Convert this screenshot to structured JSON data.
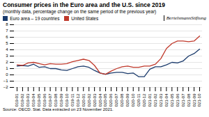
{
  "chart_data": {
    "type": "line",
    "title": "Consumer prices in the Euro area and the U.S. since 2019",
    "subtitle": "(monthly data, percentage change on the same period of the previous year)",
    "caption": "Source: OECD. Stat. Data extracted on 23 November 2021.",
    "annotations": [
      "BertelsmannStiftung"
    ],
    "x": [
      "2019-01",
      "2019-02",
      "2019-03",
      "2019-04",
      "2019-05",
      "2019-06",
      "2019-07",
      "2019-08",
      "2019-09",
      "2019-10",
      "2019-11",
      "2019-12",
      "2020-01",
      "2020-02",
      "2020-03",
      "2020-04",
      "2020-05",
      "2020-06",
      "2020-07",
      "2020-08",
      "2020-09",
      "2020-10",
      "2020-11",
      "2020-12",
      "2021-01",
      "2021-02",
      "2021-03",
      "2021-04",
      "2021-05",
      "2021-06",
      "2021-07",
      "2021-08",
      "2021-09",
      "2021-10"
    ],
    "series": [
      {
        "name": "Euro area – 19 countries",
        "color": "#1a3a6b",
        "values": [
          1.4,
          1.5,
          1.4,
          1.7,
          1.2,
          1.3,
          1.0,
          1.0,
          0.8,
          0.7,
          1.0,
          1.3,
          1.4,
          1.2,
          0.7,
          0.3,
          0.1,
          0.3,
          0.4,
          0.4,
          0.2,
          0.3,
          -0.3,
          -0.3,
          0.9,
          1.3,
          1.3,
          1.6,
          2.0,
          1.9,
          2.2,
          3.0,
          3.4,
          4.1
        ]
      },
      {
        "name": "United States",
        "color": "#c0392b",
        "values": [
          1.6,
          1.5,
          1.9,
          2.0,
          1.8,
          1.6,
          1.8,
          1.7,
          1.7,
          1.8,
          2.1,
          2.3,
          2.5,
          2.3,
          1.5,
          0.3,
          0.1,
          0.6,
          1.0,
          1.3,
          1.4,
          1.2,
          1.2,
          1.4,
          1.4,
          1.7,
          2.6,
          4.2,
          5.0,
          5.4,
          5.4,
          5.3,
          5.4,
          6.2
        ]
      }
    ],
    "ylim": [
      -2,
      8
    ],
    "yticks": [
      -2,
      -1,
      0,
      1,
      2,
      3,
      4,
      5,
      6,
      7,
      8
    ],
    "grid": true,
    "legend": "top-left"
  }
}
